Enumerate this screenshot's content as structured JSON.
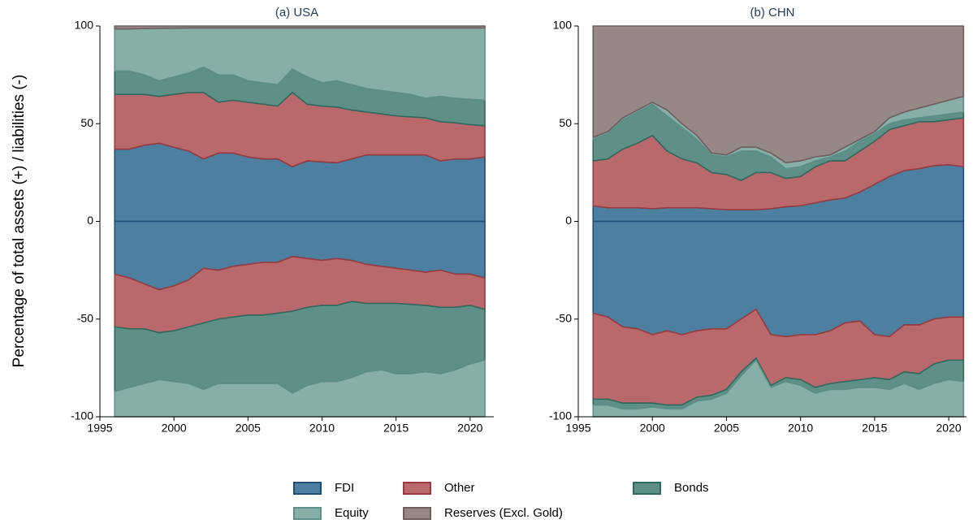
{
  "ylabel": "Percentage of total assets (+) / liabilities (-)",
  "legend": [
    {
      "name": "FDI",
      "color": "#4d7fa0",
      "edgecolor": "#1f4e79"
    },
    {
      "name": "Other",
      "color": "#b9696b",
      "edgecolor": "#9b3b3e"
    },
    {
      "name": "Bonds",
      "color": "#5f9088",
      "edgecolor": "#2f6a60"
    },
    {
      "name": "Equity",
      "color": "#88aea8",
      "edgecolor": "#5f918a"
    },
    {
      "name": "Reserves (Excl. Gold)",
      "color": "#968886",
      "edgecolor": "#6f5e5c"
    }
  ],
  "chart_data": [
    {
      "type": "area",
      "title": "(a) USA",
      "x": [
        1996,
        1997,
        1998,
        1999,
        2000,
        2001,
        2002,
        2003,
        2004,
        2005,
        2006,
        2007,
        2008,
        2009,
        2010,
        2011,
        2012,
        2013,
        2014,
        2015,
        2016,
        2017,
        2018,
        2019,
        2020,
        2021
      ],
      "xlim": [
        1995,
        2021.6
      ],
      "xticks": [
        1995,
        2000,
        2005,
        2010,
        2015,
        2020
      ],
      "ylim": [
        -100,
        100
      ],
      "yticks": [
        -100,
        -50,
        0,
        50,
        100
      ],
      "series": [
        {
          "values": [
            37,
            37,
            39,
            40,
            38,
            36,
            32,
            35,
            35,
            33,
            32,
            32,
            28,
            31,
            30.5,
            30,
            32,
            34,
            34,
            34,
            34,
            34,
            31,
            32,
            32,
            33
          ],
          "liabilities": [
            -27,
            -29,
            -32,
            -35,
            -33,
            -30,
            -24,
            -25,
            -23,
            -22,
            -21,
            -21,
            -18,
            -19,
            -20,
            -19,
            -20,
            -22,
            -23,
            -24,
            -25,
            -26,
            -25,
            -27,
            -27,
            -29
          ]
        },
        {
          "values": [
            28,
            28,
            26,
            24,
            27,
            30,
            34,
            26,
            27,
            28,
            28,
            27,
            38,
            29,
            28.5,
            28.5,
            25,
            22,
            21,
            20,
            19.5,
            19,
            20,
            18.5,
            17.5,
            16
          ],
          "liabilities": [
            -27,
            -26,
            -23,
            -22,
            -23,
            -24,
            -28,
            -25,
            -26,
            -26,
            -27,
            -26,
            -28,
            -25,
            -23,
            -24,
            -21,
            -20,
            -19,
            -18,
            -17.5,
            -17,
            -19,
            -17,
            -16,
            -16
          ]
        },
        {
          "values": [
            12,
            12,
            10,
            8,
            9,
            10,
            13,
            14,
            13,
            11,
            11,
            11,
            12,
            14,
            12,
            13.5,
            13,
            12,
            12,
            12,
            11.5,
            10,
            13,
            12.5,
            13,
            13
          ],
          "liabilities": [
            -33,
            -30,
            -28,
            -24,
            -26,
            -29,
            -34,
            -33,
            -34,
            -35,
            -35,
            -36,
            -42,
            -40,
            -39,
            -39,
            -39,
            -35,
            -34,
            -36,
            -35.5,
            -34,
            -34,
            -32,
            -30,
            -26
          ]
        },
        {
          "values": [
            21.5,
            21.5,
            23.7,
            26.8,
            24.9,
            23,
            20,
            24,
            24,
            27,
            28,
            29,
            21,
            25,
            28,
            27,
            29,
            31,
            32,
            33,
            34,
            36,
            35,
            36,
            36.5,
            37
          ],
          "liabilities": [
            -13,
            -15,
            -17,
            -19,
            -18,
            -17,
            -14,
            -17,
            -17,
            -17,
            -17,
            -17,
            -12,
            -16,
            -18,
            -18,
            -20,
            -23,
            -24,
            -22,
            -22,
            -23,
            -22,
            -24,
            -27,
            -29
          ]
        },
        {
          "values": [
            1.5,
            1.5,
            1.3,
            1.2,
            1.1,
            1,
            1,
            1,
            1,
            1,
            1,
            1,
            1,
            1,
            1,
            1,
            1,
            1,
            1,
            1,
            1,
            1,
            1,
            1,
            1,
            1
          ]
        }
      ]
    },
    {
      "type": "area",
      "title": "(b) CHN",
      "x": [
        1996,
        1997,
        1998,
        1999,
        2000,
        2001,
        2002,
        2003,
        2004,
        2005,
        2006,
        2007,
        2008,
        2009,
        2010,
        2011,
        2012,
        2013,
        2014,
        2015,
        2016,
        2017,
        2018,
        2019,
        2020,
        2021
      ],
      "xlim": [
        1995,
        2021.2
      ],
      "xticks": [
        1995,
        2000,
        2005,
        2010,
        2015,
        2020
      ],
      "ylim": [
        -100,
        100
      ],
      "yticks": [
        -100,
        -50,
        0,
        50,
        100
      ],
      "series": [
        {
          "values": [
            8,
            7,
            7,
            7,
            6.5,
            7,
            7,
            7,
            6.5,
            6,
            6,
            6,
            6.5,
            7.5,
            8,
            9.5,
            11,
            12,
            15,
            19,
            23,
            26,
            27,
            28.5,
            29,
            28
          ],
          "liabilities": [
            -47,
            -49,
            -54,
            -55,
            -58,
            -56,
            -58,
            -56,
            -55,
            -55,
            -50,
            -45,
            -58,
            -59,
            -58,
            -58,
            -56,
            -52,
            -51,
            -58,
            -59,
            -53,
            -53,
            -50,
            -49,
            -49
          ]
        },
        {
          "values": [
            23,
            25,
            30,
            33,
            37.5,
            29,
            25,
            23,
            18.5,
            18,
            15,
            19,
            18.5,
            14.5,
            15,
            18.5,
            20,
            19,
            21,
            22,
            24,
            23,
            24,
            22.5,
            23,
            25
          ],
          "liabilities": [
            -44,
            -42,
            -39,
            -38,
            -35,
            -38,
            -36,
            -34,
            -34,
            -31,
            -27,
            -25,
            -26,
            -21,
            -23,
            -27,
            -27,
            -30,
            -30,
            -22,
            -22,
            -24,
            -25,
            -23,
            -22,
            -22
          ]
        },
        {
          "values": [
            11,
            13,
            15,
            16,
            16,
            18,
            16,
            12,
            9,
            9,
            15,
            11,
            8,
            5,
            5,
            3,
            2,
            5,
            5,
            4,
            3,
            3,
            2,
            3,
            3,
            3
          ],
          "liabilities": [
            -3,
            -3,
            -3,
            -3,
            -2,
            -2,
            -2,
            -2,
            -2,
            -2,
            -2,
            -1,
            -1,
            -2,
            -3,
            -3,
            -3,
            -4,
            -4,
            -5,
            -5,
            -6,
            -8,
            -10,
            -10,
            -11
          ]
        },
        {
          "values": [
            1,
            1,
            1,
            1,
            1,
            3,
            2,
            2,
            1,
            1,
            2,
            2,
            2,
            3,
            3,
            2,
            1,
            2,
            1,
            1,
            3,
            4,
            5,
            6,
            7,
            8
          ],
          "liabilities": [
            -6,
            -6,
            -4,
            -4,
            -5,
            -4,
            -4,
            -8,
            -9,
            -12,
            -21,
            -29,
            -15,
            -18,
            -16,
            -12,
            -14,
            -14,
            -15,
            -15,
            -14,
            -17,
            -14,
            -17,
            -19,
            -18
          ]
        },
        {
          "values": [
            57,
            54,
            47,
            43,
            39,
            43,
            50,
            56,
            65,
            66,
            62,
            62,
            65,
            70,
            69,
            67,
            66,
            62,
            58,
            54,
            47,
            44,
            42,
            40,
            38,
            36
          ]
        }
      ]
    }
  ]
}
